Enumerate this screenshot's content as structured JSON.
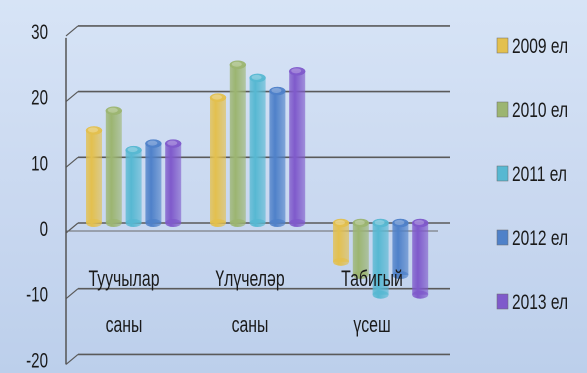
{
  "chart_data": {
    "type": "bar",
    "title": "",
    "xlabel": "",
    "ylabel": "",
    "ylim": [
      -20,
      30
    ],
    "yticks": [
      -20,
      -10,
      0,
      10,
      20,
      30
    ],
    "grid": true,
    "legend_position": "right",
    "categories": [
      [
        "Туучылар",
        "саны"
      ],
      [
        "Үлүчеләр",
        "саны"
      ],
      [
        "Табигый",
        "үсеш"
      ]
    ],
    "series": [
      {
        "name": "2009 ел",
        "color": "#e3c04e",
        "values": [
          15,
          20,
          -5
        ]
      },
      {
        "name": "2010 ел",
        "color": "#9cb571",
        "values": [
          18,
          25,
          -7
        ]
      },
      {
        "name": "2011 ел",
        "color": "#57b8d2",
        "values": [
          12,
          23,
          -10
        ]
      },
      {
        "name": "2012 ел",
        "color": "#4f81c9",
        "values": [
          13,
          21,
          -7
        ]
      },
      {
        "name": "2013 ел",
        "color": "#7f5acb",
        "values": [
          13,
          24,
          -10
        ]
      }
    ]
  }
}
